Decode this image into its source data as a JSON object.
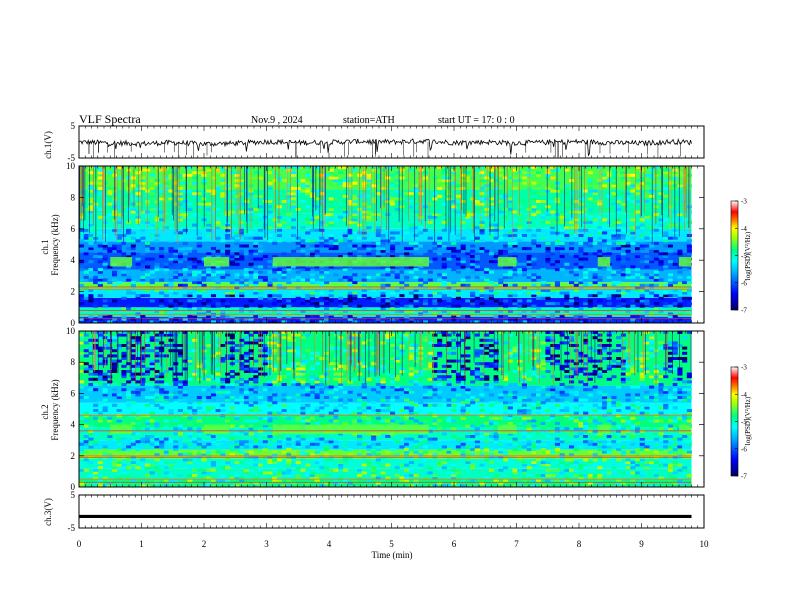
{
  "header": {
    "title": "VLF  Spectra",
    "date": "Nov.9   , 2024",
    "station": "station=ATH",
    "start": "start  UT  =    17: 0   : 0"
  },
  "colors": {
    "colormap": [
      "#000080",
      "#0000ff",
      "#00b4ff",
      "#00ffff",
      "#00ff7f",
      "#b4ff00",
      "#ffff00",
      "#ff8000",
      "#ff0000",
      "#ffffff"
    ],
    "trace": "#000000"
  },
  "chart_data": [
    {
      "type": "line",
      "panel": "ch1-waveform",
      "ylabel": "ch.1(V)",
      "ylim": [
        -5,
        5
      ],
      "yticks": [
        "5",
        "-5"
      ],
      "x": [
        0,
        0.5,
        1,
        1.5,
        2,
        2.5,
        3,
        3.5,
        4,
        4.5,
        5,
        5.5,
        6,
        6.5,
        7,
        7.5,
        8,
        8.5,
        9,
        9.5,
        9.8
      ],
      "y": [
        0,
        -0.3,
        -0.5,
        -0.2,
        -0.6,
        -0.4,
        0.1,
        -0.2,
        -0.1,
        0.2,
        0,
        0.3,
        -0.2,
        0,
        -0.3,
        -0.1,
        0.1,
        -0.2,
        -0.4,
        0.1,
        -0.1
      ]
    },
    {
      "type": "heatmap",
      "panel": "ch1-spectrogram",
      "ylabel_top": "ch.1",
      "ylabel": "Frequency  (kHz)",
      "ylim": [
        0,
        10
      ],
      "yticks": [
        "0",
        "2",
        "4",
        "6",
        "8",
        "10"
      ],
      "xlim": [
        0,
        9.8
      ],
      "colorbar": {
        "label": "log(PSD)(V²/Hz)",
        "range": [
          -7,
          -3
        ],
        "ticks": [
          "-3",
          "-4",
          "-5",
          "-6",
          "-7"
        ]
      }
    },
    {
      "type": "heatmap",
      "panel": "ch2-spectrogram",
      "ylabel_top": "ch.2",
      "ylabel": "Frequency  (kHz)",
      "ylim": [
        0,
        10
      ],
      "yticks": [
        "0",
        "2",
        "4",
        "6",
        "8",
        "10"
      ],
      "xlim": [
        0,
        9.8
      ],
      "colorbar": {
        "label": "log(PSD)(V²/Hz)",
        "range": [
          -7,
          -3
        ],
        "ticks": [
          "-3",
          "-4",
          "-5",
          "-6",
          "-7"
        ]
      }
    },
    {
      "type": "line",
      "panel": "ch3-waveform",
      "ylabel": "ch.3(V)",
      "ylim": [
        -5,
        5
      ],
      "yticks": [
        "5",
        "-5"
      ],
      "x": [
        0,
        9.8
      ],
      "y": [
        -1.5,
        -1.5
      ]
    }
  ],
  "x_axis": {
    "label": "Time  (min)",
    "ticks": [
      "0",
      "1",
      "2",
      "3",
      "4",
      "5",
      "6",
      "7",
      "8",
      "9",
      "10"
    ],
    "range": [
      0,
      10
    ]
  }
}
